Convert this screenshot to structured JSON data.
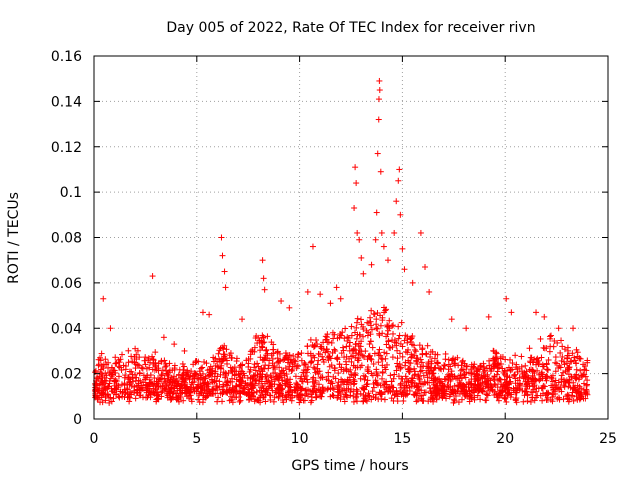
{
  "chart_data": {
    "type": "scatter",
    "title": "Day 005 of 2022, Rate Of TEC Index for receiver rivn",
    "xlabel": "GPS time / hours",
    "ylabel": "ROTI / TECUs",
    "xlim": [
      0,
      25
    ],
    "ylim": [
      0,
      0.16
    ],
    "xticks": [
      "0",
      "5",
      "10",
      "15",
      "20",
      "25"
    ],
    "yticks": [
      "0",
      "0.02",
      "0.04",
      "0.06",
      "0.08",
      "0.1",
      "0.12",
      "0.14",
      "0.16"
    ],
    "grid": true,
    "marker": "+",
    "color": "#ff0000",
    "series": [
      {
        "name": "ROTI",
        "points": [
          [
            0.45,
            0.053
          ],
          [
            0.8,
            0.04
          ],
          [
            2.85,
            0.063
          ],
          [
            6.2,
            0.08
          ],
          [
            6.25,
            0.072
          ],
          [
            6.35,
            0.065
          ],
          [
            6.4,
            0.058
          ],
          [
            8.2,
            0.07
          ],
          [
            8.25,
            0.062
          ],
          [
            8.3,
            0.057
          ],
          [
            10.65,
            0.076
          ],
          [
            10.4,
            0.056
          ],
          [
            11.8,
            0.058
          ],
          [
            12.7,
            0.111
          ],
          [
            12.75,
            0.104
          ],
          [
            12.65,
            0.093
          ],
          [
            12.8,
            0.082
          ],
          [
            12.9,
            0.079
          ],
          [
            13.0,
            0.071
          ],
          [
            13.1,
            0.064
          ],
          [
            13.5,
            0.068
          ],
          [
            13.7,
            0.079
          ],
          [
            13.75,
            0.091
          ],
          [
            13.8,
            0.117
          ],
          [
            13.85,
            0.132
          ],
          [
            13.9,
            0.145
          ],
          [
            13.88,
            0.149
          ],
          [
            13.86,
            0.141
          ],
          [
            13.95,
            0.109
          ],
          [
            14.0,
            0.082
          ],
          [
            14.1,
            0.076
          ],
          [
            14.3,
            0.07
          ],
          [
            14.6,
            0.082
          ],
          [
            14.7,
            0.096
          ],
          [
            14.8,
            0.105
          ],
          [
            14.85,
            0.11
          ],
          [
            14.9,
            0.09
          ],
          [
            15.0,
            0.075
          ],
          [
            15.1,
            0.066
          ],
          [
            15.5,
            0.06
          ],
          [
            15.9,
            0.082
          ],
          [
            16.1,
            0.067
          ],
          [
            16.3,
            0.056
          ],
          [
            5.3,
            0.047
          ],
          [
            5.6,
            0.046
          ],
          [
            7.2,
            0.044
          ],
          [
            9.1,
            0.052
          ],
          [
            9.5,
            0.049
          ],
          [
            11.0,
            0.055
          ],
          [
            11.5,
            0.051
          ],
          [
            12.0,
            0.053
          ],
          [
            17.4,
            0.044
          ],
          [
            18.1,
            0.04
          ],
          [
            19.2,
            0.045
          ],
          [
            20.05,
            0.053
          ],
          [
            20.3,
            0.047
          ],
          [
            21.5,
            0.047
          ],
          [
            21.9,
            0.045
          ],
          [
            22.6,
            0.04
          ],
          [
            23.3,
            0.04
          ],
          [
            1.2,
            0.026
          ],
          [
            2.0,
            0.031
          ],
          [
            3.4,
            0.036
          ],
          [
            3.9,
            0.033
          ],
          [
            4.4,
            0.03
          ],
          [
            0.1,
            0.01
          ],
          [
            23.9,
            0.009
          ]
        ]
      }
    ]
  }
}
